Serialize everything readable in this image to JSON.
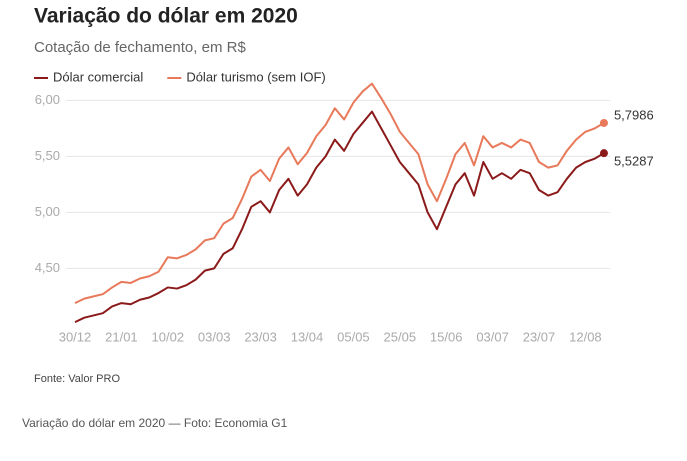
{
  "chart_data": {
    "type": "line",
    "title": "Variação do dólar em 2020",
    "subtitle": "Cotação de fechamento, em R$",
    "source": "Fonte: Valor PRO",
    "caption": "Variação do dólar em 2020 — Foto: Economia G1",
    "categories": [
      "30/12",
      null,
      null,
      null,
      null,
      "21/01",
      null,
      null,
      null,
      null,
      "10/02",
      null,
      null,
      null,
      null,
      "03/03",
      null,
      null,
      null,
      null,
      "23/03",
      null,
      null,
      null,
      null,
      "13/04",
      null,
      null,
      null,
      null,
      "05/05",
      null,
      null,
      null,
      null,
      "25/05",
      null,
      null,
      null,
      null,
      "15/06",
      null,
      null,
      null,
      null,
      "03/07",
      null,
      null,
      null,
      null,
      "23/07",
      null,
      null,
      null,
      null,
      "12/08",
      null,
      null
    ],
    "series": [
      {
        "name": "Dólar comercial",
        "color": "#8b1a1a",
        "values": [
          4.02,
          4.06,
          4.08,
          4.1,
          4.16,
          4.19,
          4.18,
          4.22,
          4.24,
          4.28,
          4.33,
          4.32,
          4.35,
          4.4,
          4.48,
          4.5,
          4.63,
          4.68,
          4.85,
          5.05,
          5.1,
          5.0,
          5.2,
          5.3,
          5.15,
          5.25,
          5.4,
          5.5,
          5.65,
          5.55,
          5.7,
          5.8,
          5.9,
          5.75,
          5.6,
          5.45,
          5.35,
          5.25,
          5.0,
          4.85,
          5.05,
          5.25,
          5.35,
          5.15,
          5.45,
          5.3,
          5.35,
          5.3,
          5.38,
          5.35,
          5.2,
          5.15,
          5.18,
          5.3,
          5.4,
          5.45,
          5.48,
          5.5287
        ],
        "value_labels": [
          null,
          null,
          null,
          null,
          null,
          null,
          null,
          null,
          null,
          null,
          null,
          null,
          null,
          null,
          null,
          null,
          null,
          null,
          null,
          null,
          null,
          null,
          null,
          null,
          null,
          null,
          null,
          null,
          null,
          null,
          null,
          null,
          null,
          null,
          null,
          null,
          null,
          null,
          null,
          null,
          null,
          null,
          null,
          null,
          null,
          null,
          null,
          null,
          null,
          null,
          null,
          null,
          null,
          null,
          null,
          null,
          null,
          "5,5287"
        ]
      },
      {
        "name": "Dólar turismo (sem IOF)",
        "color": "#e8795a",
        "values": [
          4.19,
          4.23,
          4.25,
          4.27,
          4.33,
          4.38,
          4.37,
          4.41,
          4.43,
          4.47,
          4.6,
          4.59,
          4.62,
          4.67,
          4.75,
          4.77,
          4.9,
          4.95,
          5.12,
          5.32,
          5.38,
          5.28,
          5.48,
          5.58,
          5.43,
          5.53,
          5.68,
          5.78,
          5.93,
          5.83,
          5.98,
          6.08,
          6.15,
          6.02,
          5.88,
          5.72,
          5.62,
          5.52,
          5.25,
          5.1,
          5.3,
          5.52,
          5.62,
          5.42,
          5.68,
          5.58,
          5.62,
          5.58,
          5.65,
          5.62,
          5.45,
          5.4,
          5.42,
          5.55,
          5.65,
          5.72,
          5.75,
          5.7986
        ],
        "value_labels": [
          null,
          null,
          null,
          null,
          null,
          null,
          null,
          null,
          null,
          null,
          null,
          null,
          null,
          null,
          null,
          null,
          null,
          null,
          null,
          null,
          null,
          null,
          null,
          null,
          null,
          null,
          null,
          null,
          null,
          null,
          null,
          null,
          null,
          null,
          null,
          null,
          null,
          null,
          null,
          null,
          null,
          null,
          null,
          null,
          null,
          null,
          null,
          null,
          null,
          null,
          null,
          null,
          null,
          null,
          null,
          null,
          null,
          "5,7986"
        ]
      }
    ],
    "ylim": [
      4.0,
      6.2
    ],
    "yticks": [
      {
        "value": 4.5,
        "label": "4,50"
      },
      {
        "value": 5.0,
        "label": "5,00"
      },
      {
        "value": 5.5,
        "label": "5,50"
      },
      {
        "value": 6.0,
        "label": "6,00"
      }
    ],
    "grid": true
  }
}
